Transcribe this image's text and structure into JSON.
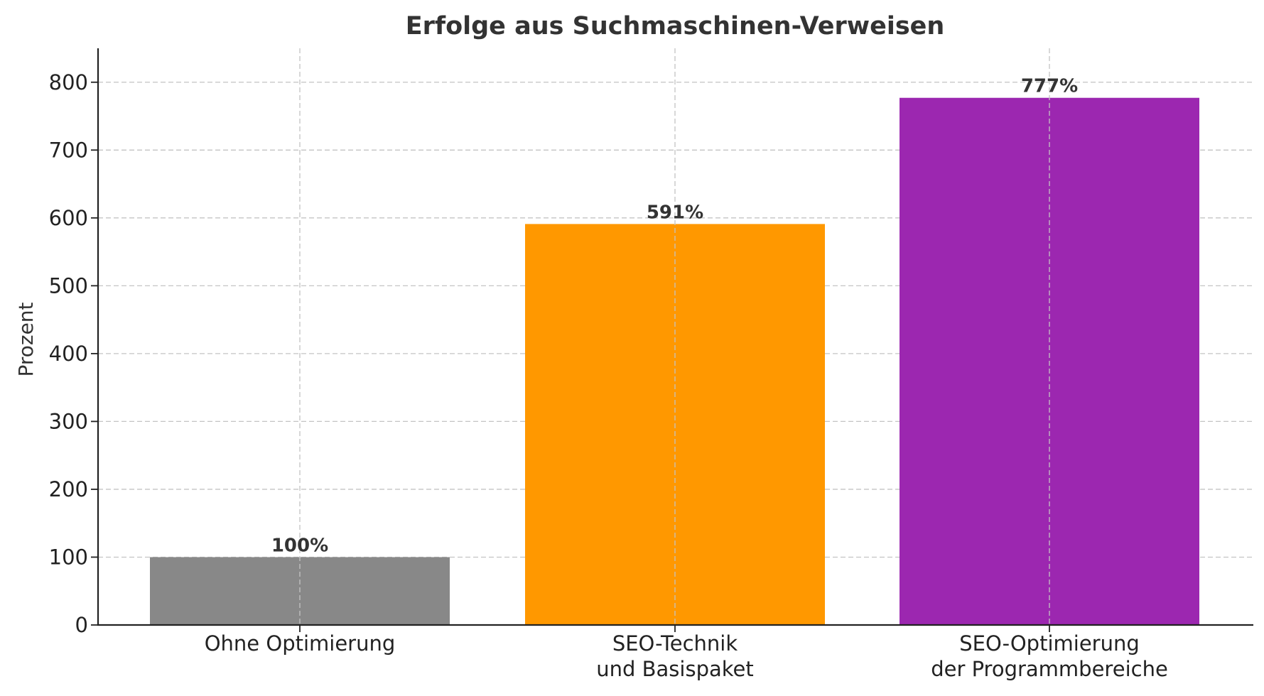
{
  "chart_data": {
    "type": "bar",
    "title": "Erfolge aus Suchmaschinen-Verweisen",
    "xlabel": "",
    "ylabel": "Prozent",
    "categories": [
      [
        "Ohne Optimierung"
      ],
      [
        "SEO-Technik",
        "und Basispaket"
      ],
      [
        "SEO-Optimierung",
        "der Programmbereiche"
      ]
    ],
    "values": [
      100,
      591,
      777
    ],
    "value_labels": [
      "100%",
      "591%",
      "777%"
    ],
    "colors": [
      "#888888",
      "#ff9800",
      "#9c27b0"
    ],
    "ylim": [
      0,
      850
    ],
    "yticks": [
      0,
      100,
      200,
      300,
      400,
      500,
      600,
      700,
      800
    ],
    "grid": true
  }
}
